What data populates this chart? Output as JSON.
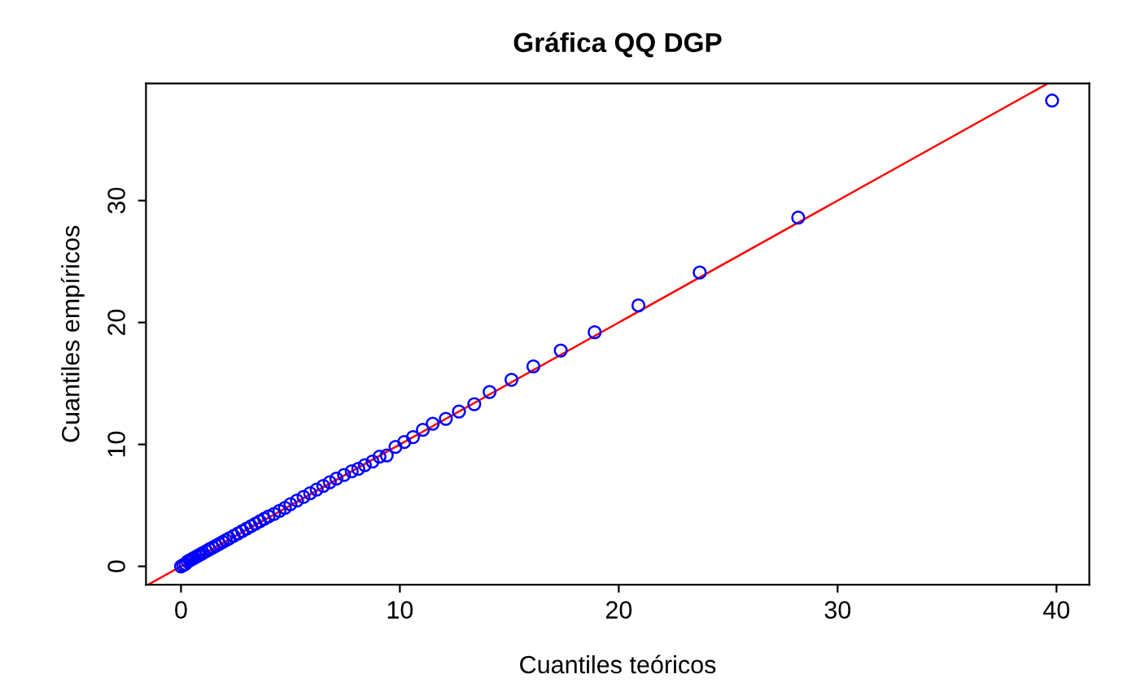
{
  "chart_data": {
    "type": "scatter",
    "title": "Gráfica QQ DGP",
    "xlabel": "Cuantiles teóricos",
    "ylabel": "Cuantiles empíricos",
    "xlim": [
      -1.6,
      41.5
    ],
    "ylim": [
      -1.5,
      39.6
    ],
    "xticks": [
      0,
      10,
      20,
      30,
      40
    ],
    "yticks": [
      0,
      10,
      20,
      30
    ],
    "grid": false,
    "legend": false,
    "series": [
      {
        "marker": "circle",
        "color": "#0000ff",
        "x": [
          0.0,
          0.1,
          0.2,
          0.3,
          0.4,
          0.5,
          0.6,
          0.7,
          0.8,
          0.9,
          1.0,
          1.15,
          1.3,
          1.45,
          1.6,
          1.75,
          1.9,
          2.05,
          2.2,
          2.4,
          2.6,
          2.8,
          3.0,
          3.2,
          3.4,
          3.6,
          3.8,
          4.0,
          4.25,
          4.5,
          4.75,
          5.0,
          5.3,
          5.6,
          5.9,
          6.2,
          6.5,
          6.8,
          7.1,
          7.45,
          7.8,
          8.1,
          8.4,
          8.75,
          9.07,
          9.4,
          9.8,
          10.2,
          10.6,
          11.05,
          11.5,
          12.1,
          12.7,
          13.4,
          14.1,
          15.1,
          16.1,
          17.35,
          18.9,
          20.9,
          23.7,
          28.2,
          39.8
        ],
        "values": [
          0.0,
          0.1,
          0.2,
          0.4,
          0.5,
          0.6,
          0.7,
          0.8,
          0.9,
          1.0,
          1.1,
          1.25,
          1.4,
          1.55,
          1.7,
          1.85,
          2.0,
          2.15,
          2.3,
          2.5,
          2.7,
          2.9,
          3.1,
          3.3,
          3.5,
          3.7,
          3.9,
          4.1,
          4.3,
          4.55,
          4.8,
          5.1,
          5.4,
          5.7,
          6.0,
          6.3,
          6.6,
          6.9,
          7.2,
          7.5,
          7.8,
          8.0,
          8.3,
          8.6,
          9.0,
          9.1,
          9.8,
          10.2,
          10.6,
          11.2,
          11.7,
          12.1,
          12.7,
          13.3,
          14.3,
          15.3,
          16.4,
          17.7,
          19.2,
          21.4,
          24.1,
          28.6,
          38.2
        ]
      },
      {
        "type": "line",
        "marker": "none",
        "color": "#ff0000",
        "x": [
          -1.5,
          39.6
        ],
        "values": [
          -1.5,
          39.6
        ]
      }
    ]
  }
}
